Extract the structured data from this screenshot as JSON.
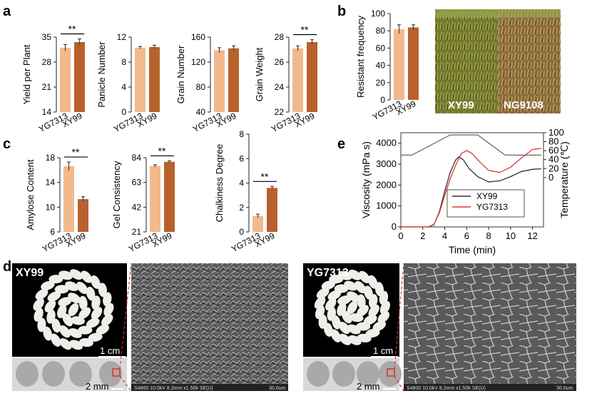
{
  "panel_labels": {
    "a": "a",
    "b": "b",
    "c": "c",
    "d": "d",
    "e": "e"
  },
  "colors": {
    "YG7313": "#f2b98c",
    "XY99": "#b8612c",
    "line_XY99": "#333333",
    "line_YG7313": "#e03a2f",
    "temperature": "#666666"
  },
  "chart_data": [
    {
      "panel": "a",
      "type": "bar",
      "ylabel": "Yield per Plant",
      "categories": [
        "YG7313",
        "XY99"
      ],
      "values": [
        32.0,
        33.6
      ],
      "errors": [
        0.9,
        0.9
      ],
      "ylim": [
        14,
        35
      ],
      "yticks": [
        14,
        21,
        28,
        35
      ],
      "significance": "**"
    },
    {
      "panel": "a",
      "type": "bar",
      "ylabel": "Panicle Number",
      "categories": [
        "YG7313",
        "XY99"
      ],
      "values": [
        10.3,
        10.4
      ],
      "errors": [
        0.2,
        0.3
      ],
      "ylim": [
        0,
        12
      ],
      "yticks": [
        0,
        4,
        8,
        12
      ],
      "significance": ""
    },
    {
      "panel": "a",
      "type": "bar",
      "ylabel": "Grain Number",
      "categories": [
        "YG7313",
        "XY99"
      ],
      "values": [
        139,
        142
      ],
      "errors": [
        4,
        4
      ],
      "ylim": [
        40,
        160
      ],
      "yticks": [
        40,
        80,
        120,
        160
      ],
      "significance": ""
    },
    {
      "panel": "a",
      "type": "bar",
      "ylabel": "Grain Weight",
      "categories": [
        "YG7313",
        "XY99"
      ],
      "values": [
        27.1,
        27.6
      ],
      "errors": [
        0.2,
        0.2
      ],
      "ylim": [
        22,
        28
      ],
      "yticks": [
        22,
        24,
        26,
        28
      ],
      "significance": "**"
    },
    {
      "panel": "b",
      "type": "bar",
      "ylabel": "Resistant frequency",
      "categories": [
        "YG7313",
        "XY99"
      ],
      "values": [
        82,
        84
      ],
      "errors": [
        5,
        3
      ],
      "ylim": [
        0,
        100
      ],
      "yticks": [
        0,
        20,
        40,
        60,
        80,
        100
      ],
      "significance": ""
    },
    {
      "panel": "c",
      "type": "bar",
      "ylabel": "Amylose Content",
      "categories": [
        "YG7313",
        "XY99"
      ],
      "values": [
        16.6,
        11.3
      ],
      "errors": [
        0.7,
        0.4
      ],
      "ylim": [
        6,
        18
      ],
      "yticks": [
        6,
        10,
        14,
        18
      ],
      "significance": "**"
    },
    {
      "panel": "c",
      "type": "bar",
      "ylabel": "Gel Consistency",
      "categories": [
        "YG7313",
        "XY99"
      ],
      "values": [
        77,
        80.5
      ],
      "errors": [
        1,
        0.8
      ],
      "ylim": [
        21,
        84
      ],
      "yticks": [
        21,
        42,
        63,
        84
      ],
      "significance": "**"
    },
    {
      "panel": "c",
      "type": "bar",
      "ylabel": "Chalkiness Degree",
      "categories": [
        "YG7313",
        "XY99"
      ],
      "values": [
        1.3,
        3.6
      ],
      "errors": [
        0.15,
        0.12
      ],
      "ylim": [
        0,
        8
      ],
      "yticks": [
        0,
        2,
        4,
        6,
        8
      ],
      "significance": "**"
    },
    {
      "panel": "e",
      "type": "line",
      "xlabel": "Time (min)",
      "ylabel": "Viscosity (mPa s)",
      "y2label": "Temperature (℃)",
      "xlim": [
        0,
        13
      ],
      "xticks": [
        0,
        2,
        4,
        6,
        8,
        10,
        12
      ],
      "ylim": [
        0,
        4500
      ],
      "yticks": [
        0,
        1000,
        2000,
        3000,
        4000
      ],
      "y2lim": [
        -110,
        100
      ],
      "y2ticks": [
        0,
        20,
        40,
        60,
        80,
        100
      ],
      "series": [
        {
          "name": "XY99",
          "x": [
            0,
            2.5,
            3,
            3.5,
            4,
            4.5,
            5,
            5.3,
            5.7,
            6.2,
            7,
            8,
            9,
            10,
            11,
            12,
            12.8
          ],
          "y": [
            0,
            0,
            100,
            700,
            1700,
            2600,
            3200,
            3350,
            3200,
            2800,
            2400,
            2150,
            2200,
            2400,
            2650,
            2750,
            2780
          ]
        },
        {
          "name": "YG7313",
          "x": [
            0,
            2.5,
            3,
            3.5,
            4,
            4.5,
            5,
            5.5,
            6,
            6.5,
            7,
            8,
            9,
            10,
            11,
            12,
            12.8
          ],
          "y": [
            0,
            0,
            120,
            650,
            1500,
            2300,
            2950,
            3500,
            3650,
            3500,
            3200,
            2700,
            2600,
            2850,
            3300,
            3700,
            3750
          ]
        },
        {
          "name": "Temperature",
          "x": [
            0,
            1,
            4.5,
            7,
            9.5,
            12,
            12.8
          ],
          "y": [
            50,
            50,
            95,
            95,
            50,
            50,
            50
          ]
        }
      ],
      "legend": "center-right"
    }
  ],
  "photo_b": {
    "labels": [
      "XY99",
      "NG9108"
    ]
  },
  "panel_d": {
    "left": {
      "title": "XY99",
      "scale_large": "1 cm",
      "scale_small": "2 mm",
      "sem_caption": "S4800 10.0kV 8.2mm x1.50k SE(U)",
      "sem_scale": "30.0um"
    },
    "right": {
      "title": "YG7313",
      "scale_large": "1 cm",
      "scale_small": "2 mm",
      "sem_caption": "S4800 10.0kV 8.2mm x1.50k SE(U)",
      "sem_scale": "30.0um"
    }
  }
}
